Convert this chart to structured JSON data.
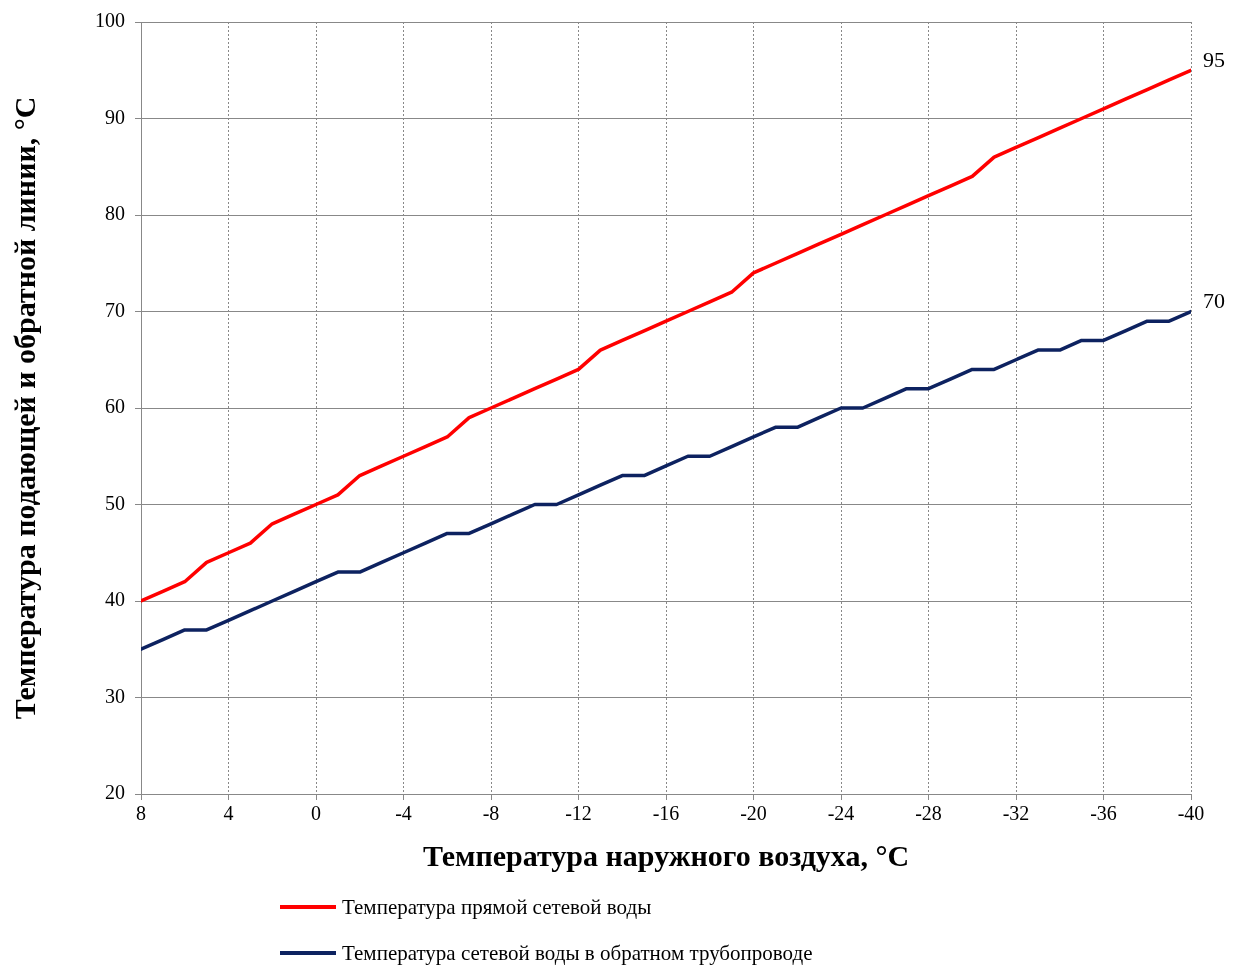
{
  "chart_data": {
    "type": "line",
    "xlabel": "Температура наружного воздуха, °C",
    "ylabel": "Температура подающей и обратной линии, °C",
    "x": [
      8,
      7,
      6,
      5,
      4,
      3,
      2,
      1,
      0,
      -1,
      -2,
      -3,
      -4,
      -5,
      -6,
      -7,
      -8,
      -9,
      -10,
      -11,
      -12,
      -13,
      -14,
      -15,
      -16,
      -17,
      -18,
      -19,
      -20,
      -21,
      -22,
      -23,
      -24,
      -25,
      -26,
      -27,
      -28,
      -29,
      -30,
      -31,
      -32,
      -33,
      -34,
      -35,
      -36,
      -37,
      -38,
      -39,
      -40
    ],
    "series": [
      {
        "name": "Температура прямой сетевой воды",
        "color": "#ff0000",
        "values": [
          40,
          41,
          42,
          44,
          45,
          46,
          48,
          49,
          50,
          51,
          53,
          54,
          55,
          56,
          57,
          59,
          60,
          61,
          62,
          63,
          64,
          66,
          67,
          68,
          69,
          70,
          71,
          72,
          74,
          75,
          76,
          77,
          78,
          79,
          80,
          81,
          82,
          83,
          84,
          86,
          87,
          88,
          89,
          90,
          91,
          92,
          93,
          94,
          95
        ]
      },
      {
        "name": "Температура сетевой воды в  обратном трубопроводе",
        "color": "#0d2260",
        "values": [
          35,
          36,
          37,
          37,
          38,
          39,
          40,
          41,
          42,
          43,
          43,
          44,
          45,
          46,
          47,
          47,
          48,
          49,
          50,
          50,
          51,
          52,
          53,
          53,
          54,
          55,
          55,
          56,
          57,
          58,
          58,
          59,
          60,
          60,
          61,
          62,
          62,
          63,
          64,
          64,
          65,
          66,
          66,
          67,
          67,
          68,
          69,
          69,
          70
        ]
      }
    ],
    "xlim": [
      8,
      -40
    ],
    "xticks": [
      8,
      4,
      0,
      -4,
      -8,
      -12,
      -16,
      -20,
      -24,
      -28,
      -32,
      -36,
      -40
    ],
    "ylim": [
      20,
      100
    ],
    "yticks": [
      20,
      30,
      40,
      50,
      60,
      70,
      80,
      90,
      100
    ],
    "annotations": [
      {
        "text": "95",
        "x": -40,
        "y": 95
      },
      {
        "text": "70",
        "x": -40,
        "y": 70
      }
    ],
    "grid": true,
    "legend": "bottom",
    "marker": "none",
    "line_style": "solid"
  }
}
